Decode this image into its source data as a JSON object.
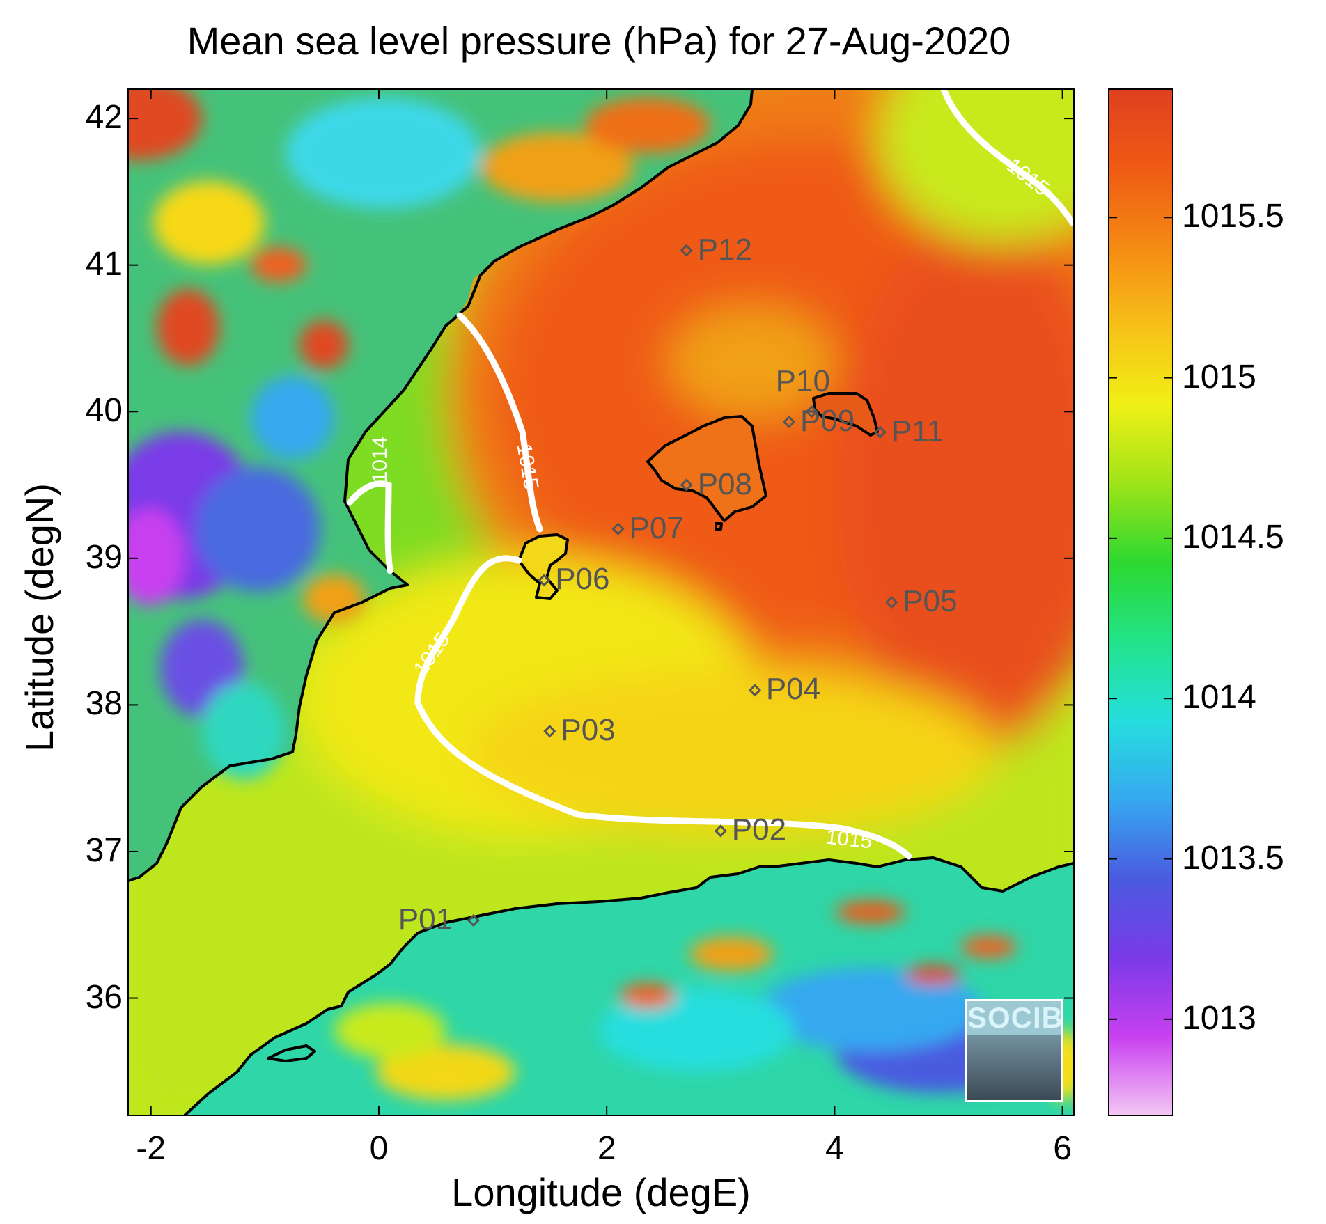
{
  "title": "Mean sea level pressure (hPa) for 27-Aug-2020",
  "x_axis": {
    "label": "Longitude (degE)",
    "range": [
      -2.2,
      6.1
    ],
    "ticks": [
      "-2",
      "0",
      "2",
      "4",
      "6"
    ]
  },
  "y_axis": {
    "label": "Latitude (degN)",
    "range": [
      35.2,
      42.2
    ],
    "ticks": [
      "36",
      "37",
      "38",
      "39",
      "40",
      "41",
      "42"
    ]
  },
  "colorbar": {
    "range": [
      1012.7,
      1015.9
    ],
    "ticks": [
      "1013",
      "1013.5",
      "1014",
      "1014.5",
      "1015",
      "1015.5"
    ],
    "colormap": [
      "#f3c7f3",
      "#c840f0",
      "#7a3ae8",
      "#4a5be0",
      "#36a8f0",
      "#25dede",
      "#22e38a",
      "#2cd830",
      "#9ee418",
      "#f0f016",
      "#f7c018",
      "#f58a14",
      "#ef5a14",
      "#df4020"
    ]
  },
  "contour_labels": [
    "1014",
    "1015",
    "1015",
    "1015",
    "1015"
  ],
  "stations": [
    {
      "id": "P01",
      "lon": 0.83,
      "lat": 36.53
    },
    {
      "id": "P02",
      "lon": 3.0,
      "lat": 37.14
    },
    {
      "id": "P03",
      "lon": 1.5,
      "lat": 37.82
    },
    {
      "id": "P04",
      "lon": 3.3,
      "lat": 38.1
    },
    {
      "id": "P05",
      "lon": 4.5,
      "lat": 38.7
    },
    {
      "id": "P06",
      "lon": 1.45,
      "lat": 38.85
    },
    {
      "id": "P07",
      "lon": 2.1,
      "lat": 39.2
    },
    {
      "id": "P08",
      "lon": 2.7,
      "lat": 39.5
    },
    {
      "id": "P09",
      "lon": 3.6,
      "lat": 39.93
    },
    {
      "id": "P10",
      "lon": 3.8,
      "lat": 40.0
    },
    {
      "id": "P11",
      "lon": 4.4,
      "lat": 39.86
    },
    {
      "id": "P12",
      "lon": 2.7,
      "lat": 41.1
    }
  ],
  "logo": {
    "text": "SOCIB"
  }
}
